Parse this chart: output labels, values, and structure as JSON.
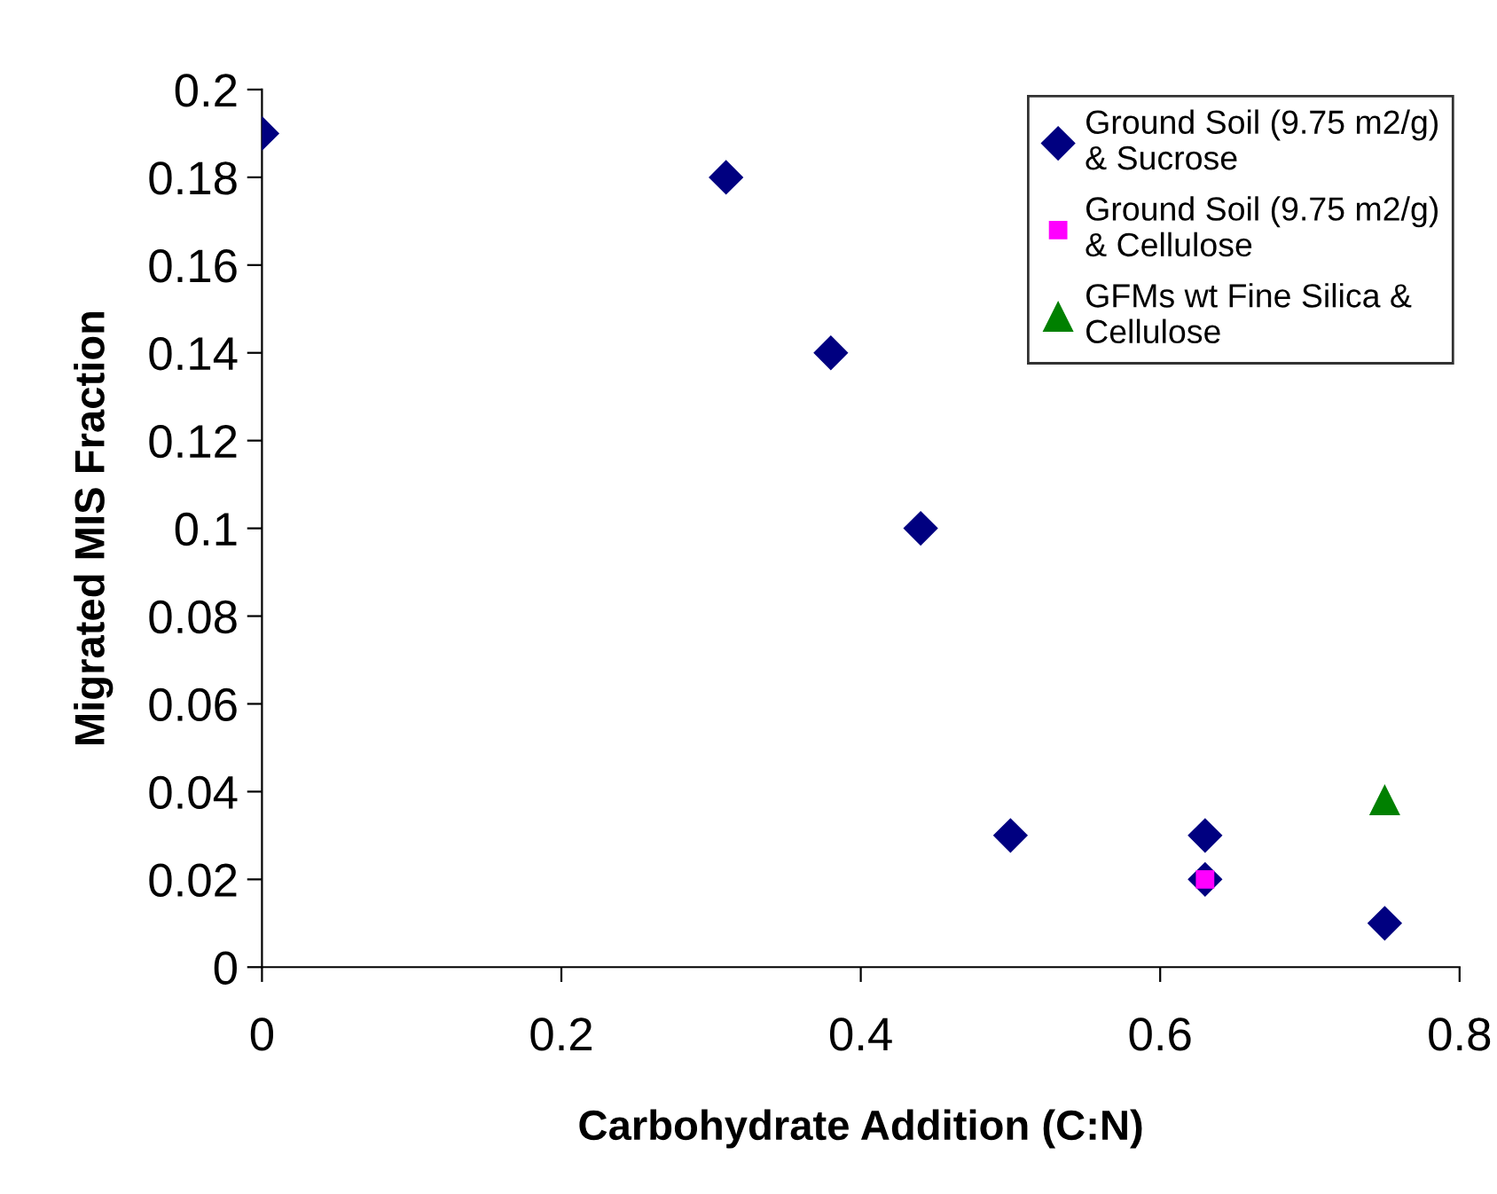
{
  "chart_data": {
    "type": "scatter",
    "xlabel": "Carbohydrate Addition (C:N)",
    "ylabel": "Migrated MIS Fraction",
    "xlim": [
      0,
      0.8
    ],
    "xticks": [
      0,
      0.2,
      0.4,
      0.6,
      0.8
    ],
    "ylim": [
      0,
      0.2
    ],
    "yticks": [
      0,
      0.02,
      0.04,
      0.06,
      0.08,
      0.1,
      0.12,
      0.14,
      0.16,
      0.18,
      0.2
    ],
    "grid": false,
    "legend": "top right",
    "series": [
      {
        "name": "Ground Soil (9.75 m2/g) & Sucrose",
        "color": "#000080",
        "marker": "diamond",
        "x": [
          0,
          0.31,
          0.38,
          0.44,
          0.5,
          0.63,
          0.63,
          0.75
        ],
        "values": [
          0.19,
          0.18,
          0.14,
          0.1,
          0.03,
          0.03,
          0.02,
          0.01
        ]
      },
      {
        "name": "Ground Soil (9.75 m2/g) & Cellulose",
        "color": "#ff00ff",
        "marker": "square",
        "x": [
          0.63
        ],
        "values": [
          0.02
        ]
      },
      {
        "name": "GFMs wt Fine Silica & Cellulose",
        "color": "#008000",
        "marker": "triangle",
        "x": [
          0.75
        ],
        "values": [
          0.038
        ]
      }
    ]
  }
}
